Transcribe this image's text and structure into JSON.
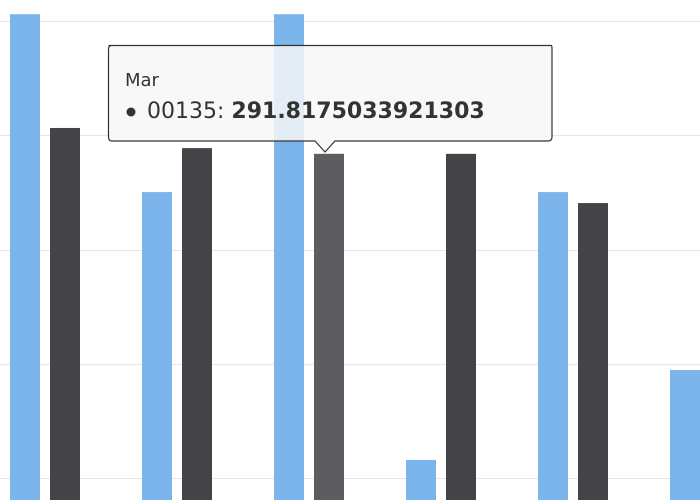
{
  "chart_data": {
    "type": "bar",
    "categories": [
      null,
      null,
      "Mar",
      null,
      null,
      null
    ],
    "series": [
      {
        "color": "#7cb5ec",
        "values": [
          352.8,
          275.1,
          352.8,
          158.1,
          275.1,
          197.4
        ]
      },
      {
        "name": "00135",
        "color": "#434348",
        "values": [
          303.1,
          294.3,
          291.8175033921303,
          291.8,
          270.3,
          null
        ]
      }
    ],
    "ylim": [
      140.6,
      359
    ],
    "yticks": [
      150,
      200,
      250,
      300,
      350
    ],
    "grid": true
  }
}
